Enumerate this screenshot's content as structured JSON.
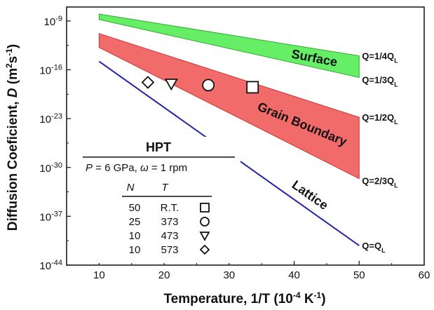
{
  "chart_data": {
    "type": "line",
    "xlabel": "Temperature, 1/T (10",
    "xlabel_sup": "-4",
    "xlabel_unit": " K",
    "xlabel_sup2": "-1",
    "xlabel_close": ")",
    "ylabel": "Diffusion Coeficient, ",
    "ylabel_var": "D",
    "ylabel_unit": " (m",
    "ylabel_sup": "2",
    "ylabel_s": "s",
    "ylabel_sup2": "-1",
    "ylabel_close": ")",
    "xlim": [
      5,
      60
    ],
    "ylim": [
      -44,
      -7
    ],
    "y_scale": "log10",
    "x_ticks": [
      10,
      20,
      30,
      40,
      50,
      60
    ],
    "y_tick_exponents": [
      -9,
      -16,
      -23,
      -30,
      -37,
      -44
    ],
    "y_tick_base": "10",
    "bands": [
      {
        "name": "Surface",
        "color": "#66ee66",
        "edge_color": "#33aa33",
        "upper": [
          [
            10,
            -8.0
          ],
          [
            50,
            -14.0
          ]
        ],
        "lower": [
          [
            10,
            -8.8
          ],
          [
            50,
            -17.1
          ]
        ],
        "label_upper": "Q=1/4Q",
        "label_lower": "Q=1/3Q",
        "sub": "L"
      },
      {
        "name": "Grain Boundary",
        "color": "#f26b6b",
        "edge_color": "#cc3333",
        "upper": [
          [
            10,
            -10.8
          ],
          [
            50,
            -22.8
          ]
        ],
        "lower": [
          [
            10,
            -12.8
          ],
          [
            50,
            -31.6
          ]
        ],
        "label_upper": "Q=1/2Q",
        "label_lower": "Q=2/3Q",
        "sub": "L"
      }
    ],
    "lines": [
      {
        "name": "Lattice",
        "color": "#2222aa",
        "points": [
          [
            10,
            -14.8
          ],
          [
            50,
            -41.2
          ]
        ],
        "label_end": "Q=Q",
        "sub": "L"
      }
    ],
    "scatter": [
      {
        "N": "50",
        "T": "R.T.",
        "marker": "square",
        "x": 33.6,
        "y": -18.5
      },
      {
        "N": "25",
        "T": "373",
        "marker": "circle",
        "x": 26.8,
        "y": -18.2
      },
      {
        "N": "10",
        "T": "473",
        "marker": "triangle-down",
        "x": 21.1,
        "y": -18.0
      },
      {
        "N": "10",
        "T": "573",
        "marker": "diamond",
        "x": 17.5,
        "y": -17.8
      }
    ],
    "legend": {
      "title": "HPT",
      "condition_p": "P",
      "condition_rest": " = 6 GPa, ",
      "condition_omega": "ω",
      "condition_end": " = 1 rpm",
      "col_n": "N",
      "col_t": "T"
    }
  }
}
